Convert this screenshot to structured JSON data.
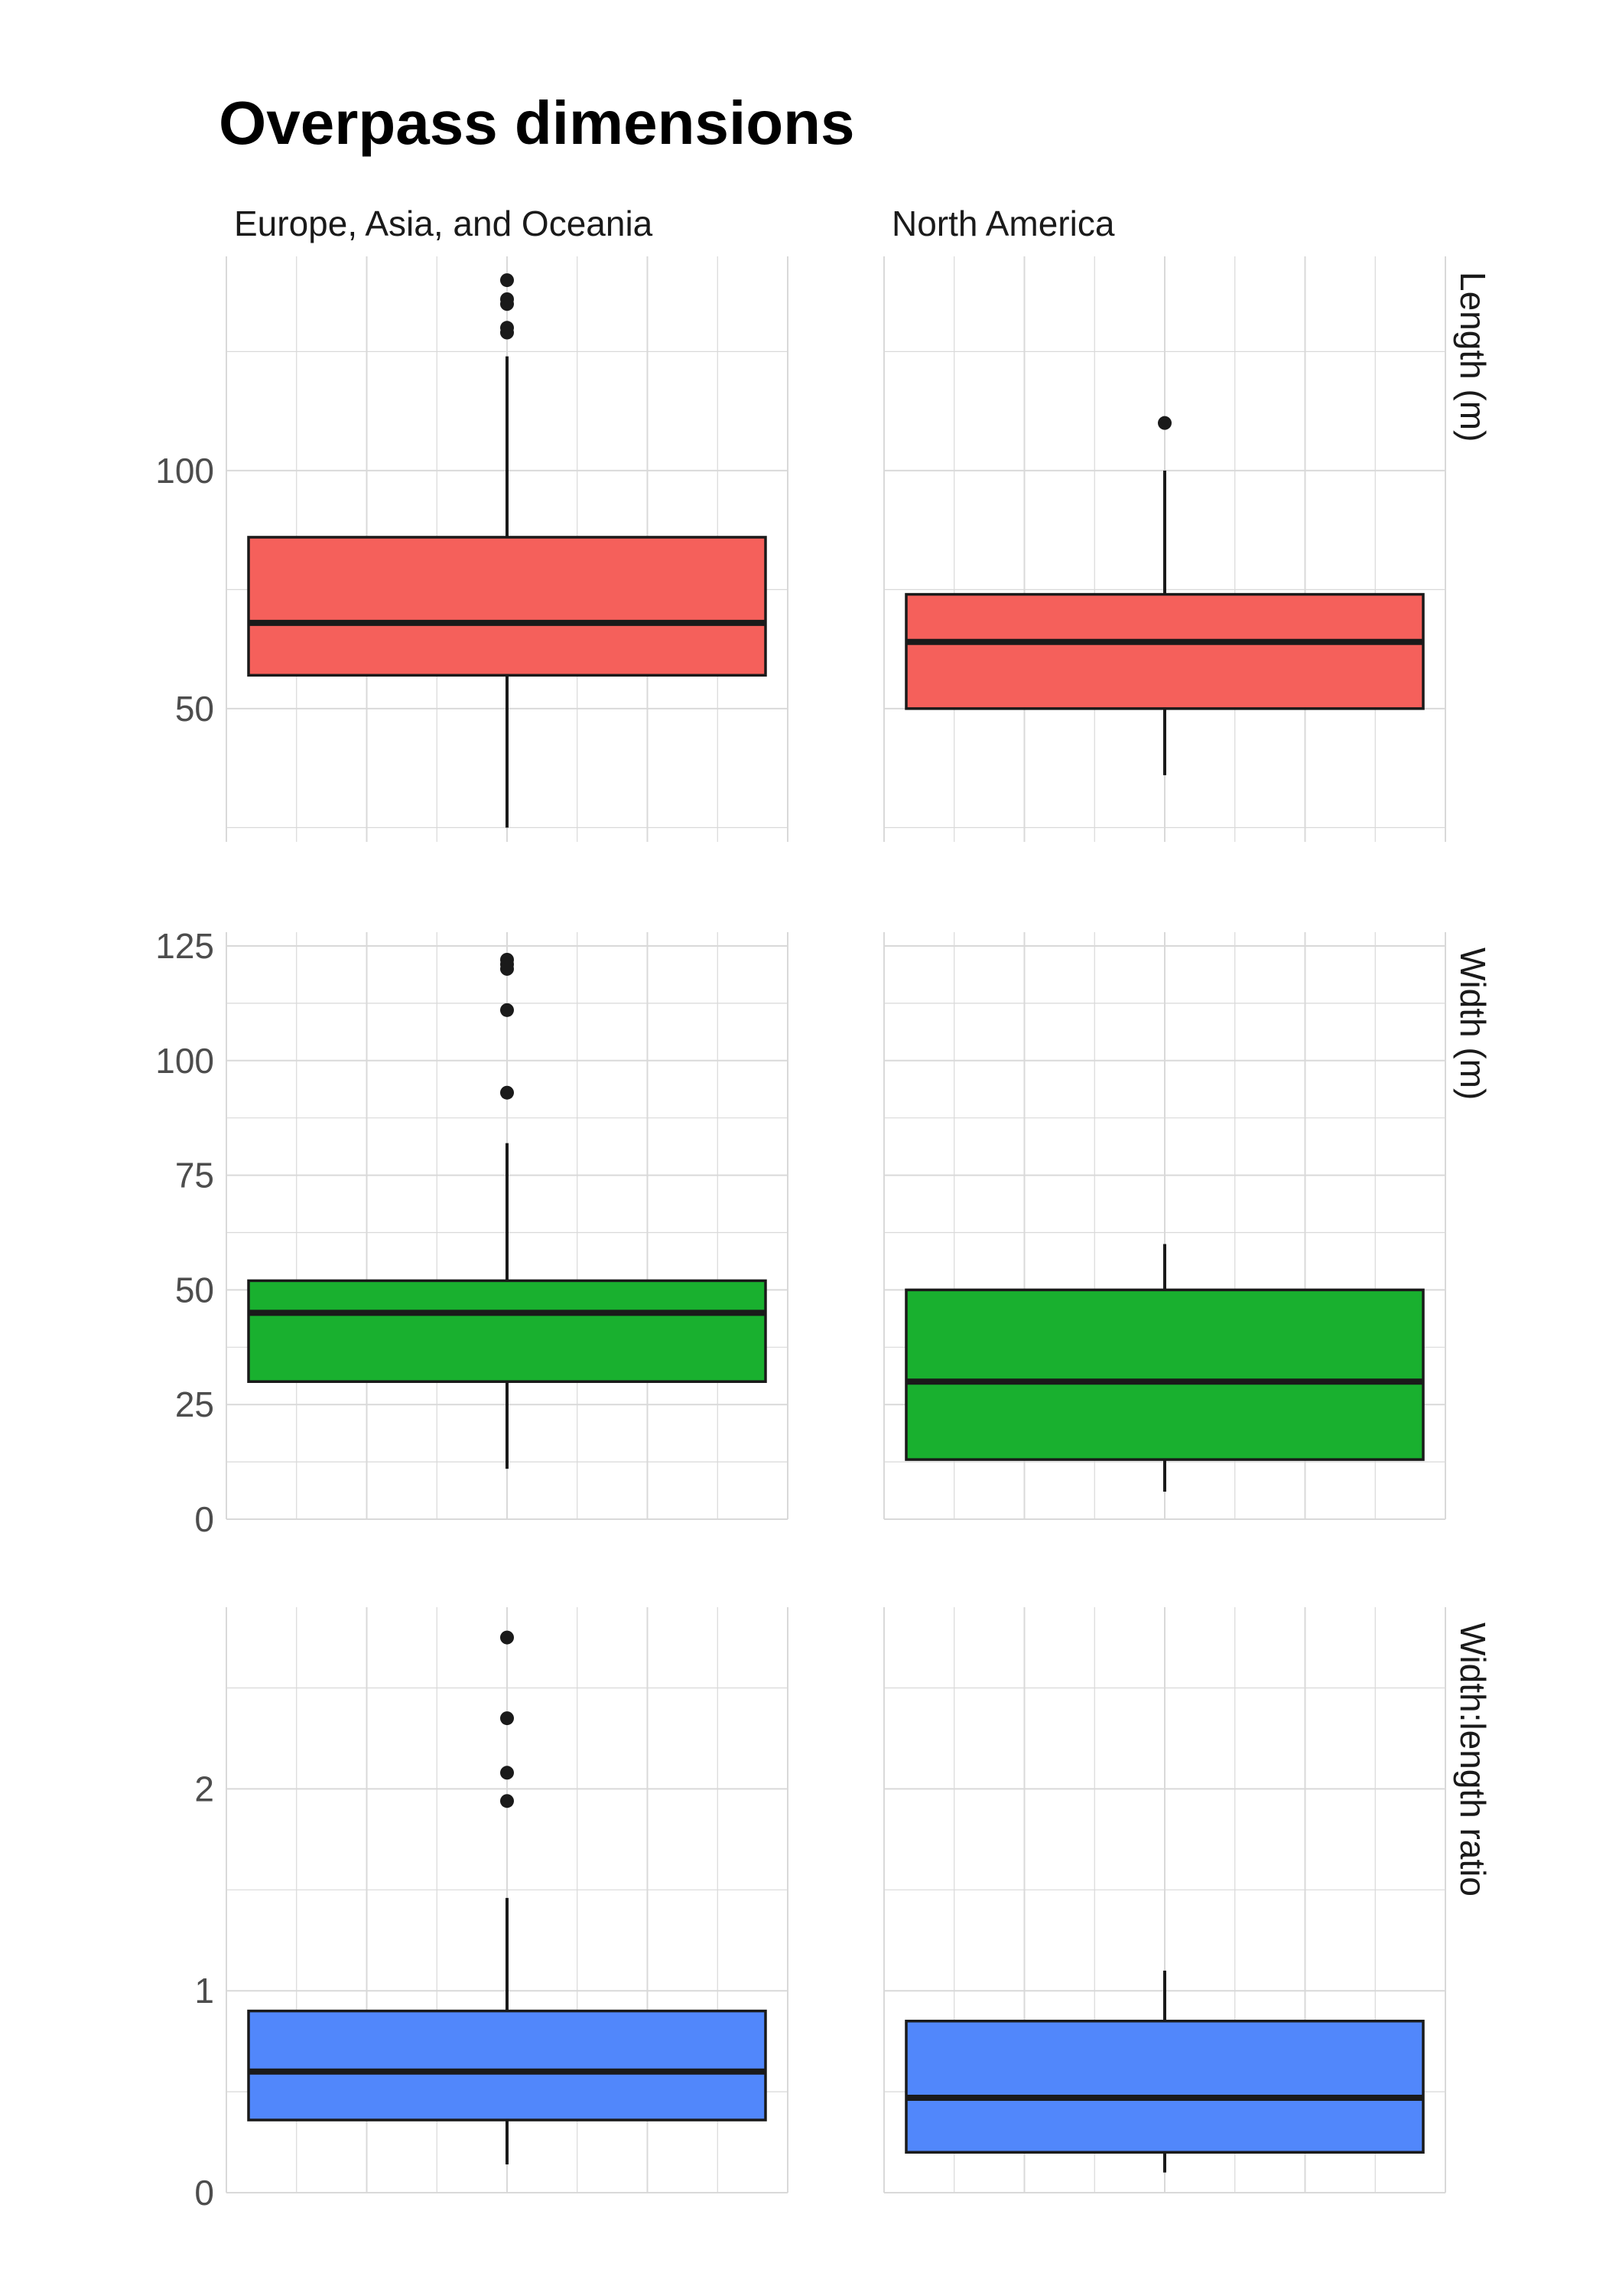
{
  "title": "Overpass dimensions",
  "columns": [
    "Europe, Asia, and Oceania",
    "North America"
  ],
  "rows": [
    "Length (m)",
    "Width (m)",
    "Width:length ratio"
  ],
  "colors": {
    "length": "#f5605b",
    "width": "#19b02f",
    "ratio": "#5187fb",
    "outline": "#1a1a1a",
    "grid": "#d9d9d9"
  },
  "chart_data": [
    {
      "type": "boxplot",
      "facet_row": "Length (m)",
      "ylim": [
        22,
        145
      ],
      "y_ticks": [
        50,
        100
      ],
      "fill": "#f5605b",
      "series": [
        {
          "name": "Europe, Asia, and Oceania",
          "whisker_low": 25,
          "q1": 57,
          "median": 68,
          "q3": 86,
          "whisker_high": 124,
          "outliers": [
            129,
            130,
            135,
            136,
            140
          ]
        },
        {
          "name": "North America",
          "whisker_low": 36,
          "q1": 50,
          "median": 64,
          "q3": 74,
          "whisker_high": 100,
          "outliers": [
            110
          ]
        }
      ]
    },
    {
      "type": "boxplot",
      "facet_row": "Width (m)",
      "ylim": [
        0,
        128
      ],
      "y_ticks": [
        0,
        25,
        50,
        75,
        100,
        125
      ],
      "fill": "#19b02f",
      "series": [
        {
          "name": "Europe, Asia, and Oceania",
          "whisker_low": 11,
          "q1": 30,
          "median": 45,
          "q3": 52,
          "whisker_high": 82,
          "outliers": [
            93,
            111,
            120,
            121,
            122
          ]
        },
        {
          "name": "North America",
          "whisker_low": 6,
          "q1": 13,
          "median": 30,
          "q3": 50,
          "whisker_high": 60,
          "outliers": []
        }
      ]
    },
    {
      "type": "boxplot",
      "facet_row": "Width:length ratio",
      "ylim": [
        0,
        2.9
      ],
      "y_ticks": [
        0,
        1,
        2
      ],
      "fill": "#5187fb",
      "series": [
        {
          "name": "Europe, Asia, and Oceania",
          "whisker_low": 0.14,
          "q1": 0.36,
          "median": 0.6,
          "q3": 0.9,
          "whisker_high": 1.46,
          "outliers": [
            1.94,
            2.08,
            2.35,
            2.75
          ]
        },
        {
          "name": "North America",
          "whisker_low": 0.1,
          "q1": 0.2,
          "median": 0.47,
          "q3": 0.85,
          "whisker_high": 1.1,
          "outliers": []
        }
      ]
    }
  ]
}
